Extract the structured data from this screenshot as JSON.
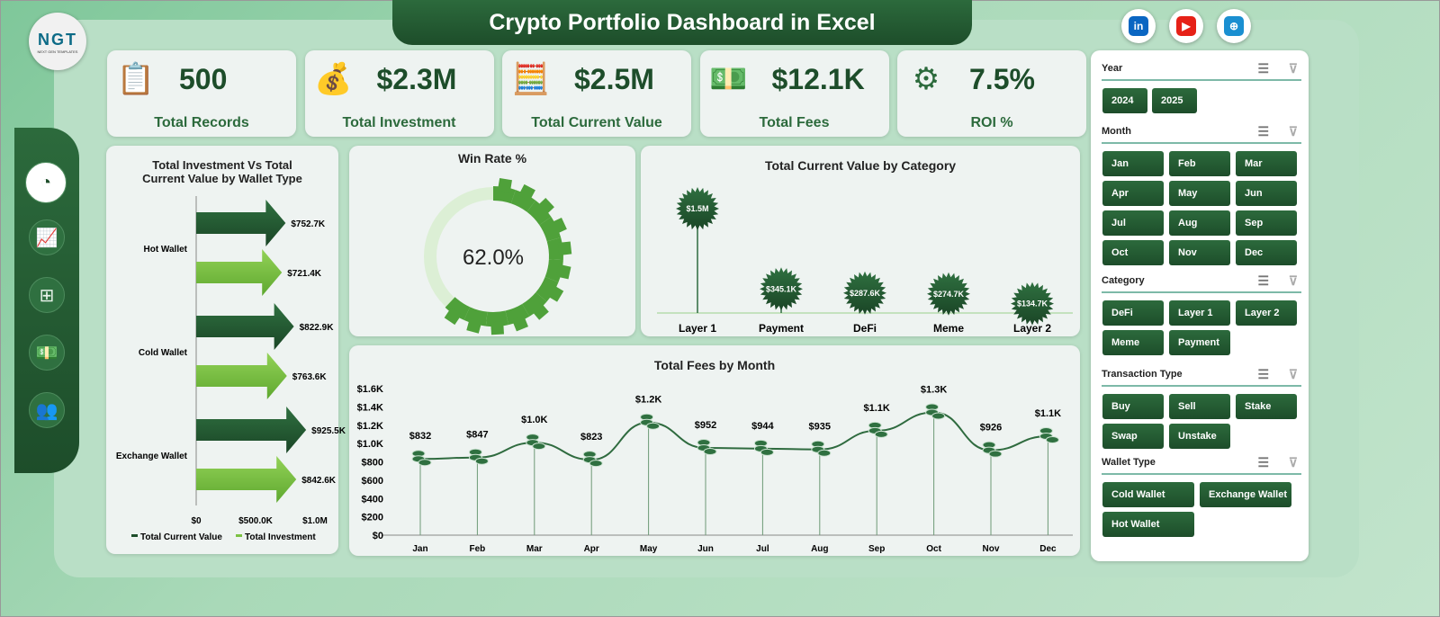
{
  "header": {
    "title": "Crypto Portfolio Dashboard in Excel",
    "logo": "NGT",
    "logo_sub": "NEXT GEN TEMPLATES",
    "social": [
      {
        "icon": "linkedin-icon",
        "label": "in",
        "color": "#0a66c2"
      },
      {
        "icon": "youtube-icon",
        "label": "▶",
        "color": "#e62117"
      },
      {
        "icon": "globe-icon",
        "label": "⊕",
        "color": "#1a8fd1"
      }
    ]
  },
  "kpis": [
    {
      "value": "500",
      "label": "Total Records",
      "icon": "clipboard-calculator-icon"
    },
    {
      "value": "$2.3M",
      "label": "Total Investment",
      "icon": "money-bag-growth-icon"
    },
    {
      "value": "$2.5M",
      "label": "Total Current Value",
      "icon": "calculator-icon"
    },
    {
      "value": "$12.1K",
      "label": "Total Fees",
      "icon": "cash-hand-icon"
    },
    {
      "value": "7.5%",
      "label": "ROI %",
      "icon": "dollar-gear-icon"
    }
  ],
  "nav": [
    {
      "icon": "presentation-icon"
    },
    {
      "icon": "line-chart-icon"
    },
    {
      "icon": "hierarchy-icon"
    },
    {
      "icon": "cash-icon"
    },
    {
      "icon": "users-icon"
    }
  ],
  "colors": {
    "dark": "#1d4d2a",
    "light": "#7cc243",
    "line": "#2f6b3f"
  },
  "chart_data": [
    {
      "type": "bar",
      "title": "Total Investment Vs Total Current Value by Wallet Type",
      "categories": [
        "Hot Wallet",
        "Cold Wallet",
        "Exchange Wallet"
      ],
      "series": [
        {
          "name": "Total Current Value",
          "values": [
            752700,
            822900,
            925500
          ],
          "labels": [
            "$752.7K",
            "$822.9K",
            "$925.5K"
          ]
        },
        {
          "name": "Total Investment",
          "values": [
            721400,
            763600,
            842600
          ],
          "labels": [
            "$721.4K",
            "$763.6K",
            "$842.6K"
          ]
        }
      ],
      "xlim": [
        0,
        1000000
      ],
      "xticks": [
        "$0",
        "$500.0K",
        "$1.0M"
      ],
      "legend": "bottom"
    },
    {
      "type": "pie",
      "title": "Win Rate %",
      "value": 62.0,
      "label": "62.0%"
    },
    {
      "type": "bar",
      "title": "Total Current  Value by Category",
      "categories": [
        "Layer 1",
        "Payment",
        "DeFi",
        "Meme",
        "Layer 2"
      ],
      "values": [
        1500000,
        345100,
        287600,
        274700,
        134700
      ],
      "labels": [
        "$1.5M",
        "$345.1K",
        "$287.6K",
        "$274.7K",
        "$134.7K"
      ]
    },
    {
      "type": "line",
      "title": "Total Fees by Month",
      "categories": [
        "Jan",
        "Feb",
        "Mar",
        "Apr",
        "May",
        "Jun",
        "Jul",
        "Aug",
        "Sep",
        "Oct",
        "Nov",
        "Dec"
      ],
      "values": [
        832,
        847,
        1010,
        823,
        1230,
        952,
        944,
        935,
        1140,
        1340,
        926,
        1080
      ],
      "labels": [
        "$832",
        "$847",
        "$1.0K",
        "$823",
        "$1.2K",
        "$952",
        "$944",
        "$935",
        "$1.1K",
        "$1.3K",
        "$926",
        "$1.1K"
      ],
      "ylim": [
        0,
        1600
      ],
      "yticks": [
        "$0",
        "$200",
        "$400",
        "$600",
        "$800",
        "$1.0K",
        "$1.2K",
        "$1.4K",
        "$1.6K"
      ]
    }
  ],
  "slicers": [
    {
      "title": "Year",
      "items": [
        "2024",
        "2025"
      ]
    },
    {
      "title": "Month",
      "items": [
        "Jan",
        "Feb",
        "Mar",
        "Apr",
        "May",
        "Jun",
        "Jul",
        "Aug",
        "Sep",
        "Oct",
        "Nov",
        "Dec"
      ]
    },
    {
      "title": "Category",
      "items": [
        "DeFi",
        "Layer 1",
        "Layer 2",
        "Meme",
        "Payment"
      ]
    },
    {
      "title": "Transaction Type",
      "items": [
        "Buy",
        "Sell",
        "Stake",
        "Swap",
        "Unstake"
      ]
    },
    {
      "title": "Wallet Type",
      "items": [
        "Cold Wallet",
        "Exchange Wallet",
        "Hot Wallet"
      ]
    }
  ]
}
